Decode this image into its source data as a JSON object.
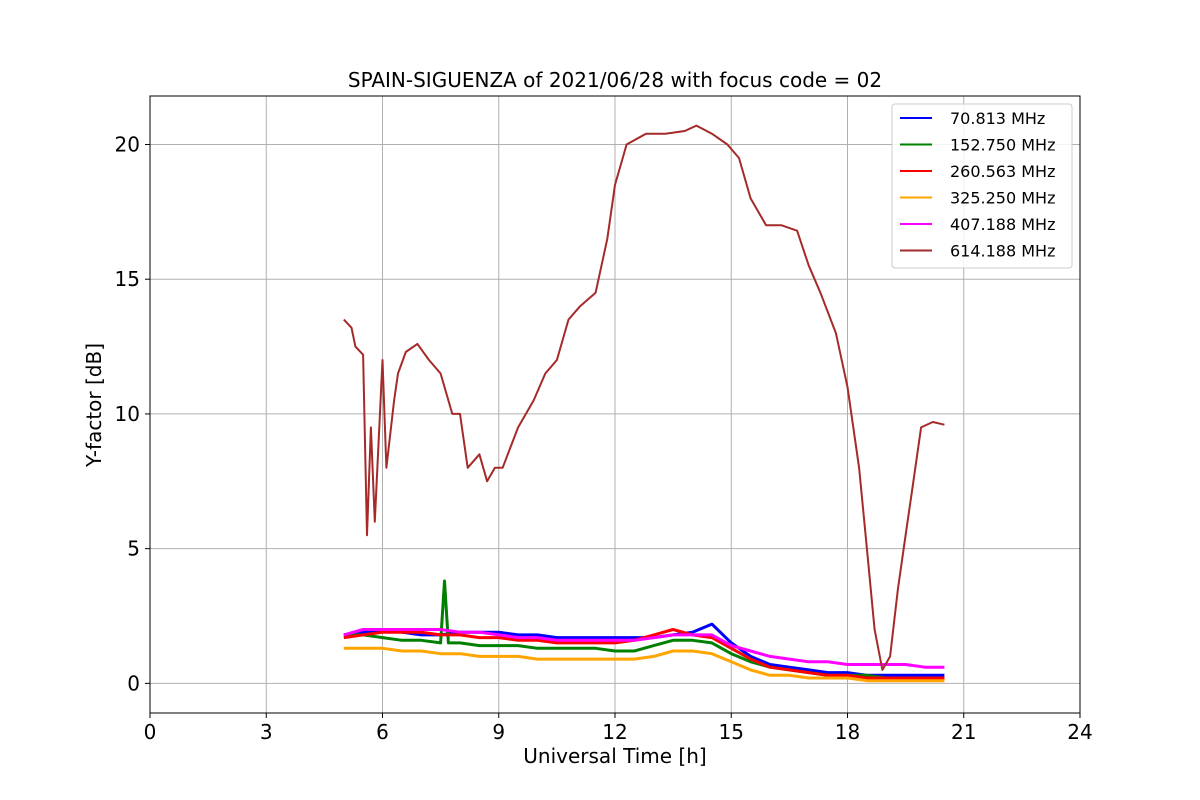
{
  "chart_data": {
    "type": "line",
    "title": "SPAIN-SIGUENZA of 2021/06/28 with focus code = 02",
    "xlabel": "Universal Time [h]",
    "ylabel": "Y-factor [dB]",
    "xlim": [
      0,
      24
    ],
    "ylim": [
      -1.1,
      21.8
    ],
    "xticks": [
      0,
      3,
      6,
      9,
      12,
      15,
      18,
      21,
      24
    ],
    "yticks": [
      0,
      5,
      10,
      15,
      20
    ],
    "grid": true,
    "legend_position": "top-right",
    "series": [
      {
        "name": " 70.813 MHz",
        "color": "#0000ff",
        "x": [
          5.0,
          5.5,
          6.0,
          6.5,
          7.0,
          7.5,
          8.0,
          8.5,
          9.0,
          9.5,
          10.0,
          10.5,
          11.0,
          11.5,
          12.0,
          12.5,
          13.0,
          13.5,
          14.0,
          14.5,
          15.0,
          15.5,
          16.0,
          16.5,
          17.0,
          17.5,
          18.0,
          18.5,
          19.0,
          19.5,
          20.0,
          20.5
        ],
        "y": [
          1.8,
          1.9,
          2.0,
          1.9,
          1.8,
          1.8,
          1.9,
          1.9,
          1.9,
          1.8,
          1.8,
          1.7,
          1.7,
          1.7,
          1.7,
          1.7,
          1.7,
          1.8,
          1.9,
          2.2,
          1.5,
          1.0,
          0.7,
          0.6,
          0.5,
          0.4,
          0.4,
          0.3,
          0.3,
          0.3,
          0.3,
          0.3
        ]
      },
      {
        "name": "152.750 MHz",
        "color": "#008000",
        "x": [
          5.0,
          5.5,
          6.0,
          6.5,
          7.0,
          7.5,
          7.6,
          7.7,
          8.0,
          8.5,
          9.0,
          9.5,
          10.0,
          10.5,
          11.0,
          11.5,
          12.0,
          12.5,
          13.0,
          13.5,
          14.0,
          14.5,
          15.0,
          15.5,
          16.0,
          16.5,
          17.0,
          17.5,
          18.0,
          18.5,
          19.0,
          19.5,
          20.0,
          20.5
        ],
        "y": [
          1.8,
          1.8,
          1.7,
          1.6,
          1.6,
          1.5,
          3.8,
          1.5,
          1.5,
          1.4,
          1.4,
          1.4,
          1.3,
          1.3,
          1.3,
          1.3,
          1.2,
          1.2,
          1.4,
          1.6,
          1.6,
          1.5,
          1.1,
          0.8,
          0.6,
          0.5,
          0.4,
          0.3,
          0.3,
          0.3,
          0.2,
          0.2,
          0.2,
          0.2
        ]
      },
      {
        "name": "260.563 MHz",
        "color": "#ff0000",
        "x": [
          5.0,
          5.5,
          6.0,
          6.5,
          7.0,
          7.5,
          8.0,
          8.5,
          9.0,
          9.5,
          10.0,
          10.5,
          11.0,
          11.5,
          12.0,
          12.5,
          13.0,
          13.5,
          14.0,
          14.5,
          15.0,
          15.5,
          16.0,
          16.5,
          17.0,
          17.5,
          18.0,
          18.5,
          19.0,
          19.5,
          20.0,
          20.5
        ],
        "y": [
          1.7,
          1.8,
          1.9,
          1.9,
          1.9,
          1.8,
          1.8,
          1.7,
          1.7,
          1.6,
          1.6,
          1.5,
          1.5,
          1.5,
          1.5,
          1.6,
          1.8,
          2.0,
          1.8,
          1.7,
          1.3,
          0.9,
          0.6,
          0.5,
          0.4,
          0.3,
          0.3,
          0.2,
          0.2,
          0.2,
          0.2,
          0.2
        ]
      },
      {
        "name": "325.250 MHz",
        "color": "#ffa500",
        "x": [
          5.0,
          5.5,
          6.0,
          6.5,
          7.0,
          7.5,
          8.0,
          8.5,
          9.0,
          9.5,
          10.0,
          10.5,
          11.0,
          11.5,
          12.0,
          12.5,
          13.0,
          13.5,
          14.0,
          14.5,
          15.0,
          15.5,
          16.0,
          16.5,
          17.0,
          17.5,
          18.0,
          18.5,
          19.0,
          19.5,
          20.0,
          20.5
        ],
        "y": [
          1.3,
          1.3,
          1.3,
          1.2,
          1.2,
          1.1,
          1.1,
          1.0,
          1.0,
          1.0,
          0.9,
          0.9,
          0.9,
          0.9,
          0.9,
          0.9,
          1.0,
          1.2,
          1.2,
          1.1,
          0.8,
          0.5,
          0.3,
          0.3,
          0.2,
          0.2,
          0.2,
          0.1,
          0.1,
          0.1,
          0.1,
          0.1
        ]
      },
      {
        "name": "407.188 MHz",
        "color": "#ff00ff",
        "x": [
          5.0,
          5.5,
          6.0,
          6.5,
          7.0,
          7.5,
          8.0,
          8.5,
          9.0,
          9.5,
          10.0,
          10.5,
          11.0,
          11.5,
          12.0,
          12.5,
          13.0,
          13.5,
          14.0,
          14.5,
          15.0,
          15.5,
          16.0,
          16.5,
          17.0,
          17.5,
          18.0,
          18.5,
          19.0,
          19.5,
          20.0,
          20.5
        ],
        "y": [
          1.8,
          2.0,
          2.0,
          2.0,
          2.0,
          2.0,
          1.9,
          1.9,
          1.8,
          1.7,
          1.7,
          1.6,
          1.6,
          1.6,
          1.6,
          1.6,
          1.7,
          1.8,
          1.8,
          1.8,
          1.4,
          1.2,
          1.0,
          0.9,
          0.8,
          0.8,
          0.7,
          0.7,
          0.7,
          0.7,
          0.6,
          0.6
        ]
      },
      {
        "name": "614.188 MHz",
        "color": "#a52a2a",
        "x": [
          5.0,
          5.2,
          5.3,
          5.5,
          5.6,
          5.7,
          5.8,
          6.0,
          6.1,
          6.3,
          6.4,
          6.6,
          6.9,
          7.2,
          7.5,
          7.8,
          8.0,
          8.2,
          8.5,
          8.7,
          8.9,
          9.1,
          9.5,
          9.9,
          10.2,
          10.5,
          10.8,
          11.1,
          11.5,
          11.8,
          12.0,
          12.3,
          12.8,
          13.3,
          13.8,
          14.1,
          14.5,
          14.9,
          15.2,
          15.5,
          15.9,
          16.3,
          16.7,
          17.0,
          17.3,
          17.7,
          18.0,
          18.3,
          18.5,
          18.7,
          18.9,
          19.1,
          19.3,
          19.5,
          19.7,
          19.9,
          20.2,
          20.5
        ],
        "y": [
          13.5,
          13.2,
          12.5,
          12.2,
          5.5,
          9.5,
          6.0,
          12.0,
          8.0,
          10.5,
          11.5,
          12.3,
          12.6,
          12.0,
          11.5,
          10.0,
          10.0,
          8.0,
          8.5,
          7.5,
          8.0,
          8.0,
          9.5,
          10.5,
          11.5,
          12.0,
          13.5,
          14.0,
          14.5,
          16.5,
          18.5,
          20.0,
          20.4,
          20.4,
          20.5,
          20.7,
          20.4,
          20.0,
          19.5,
          18.0,
          17.0,
          17.0,
          16.8,
          15.5,
          14.5,
          13.0,
          11.0,
          8.0,
          5.0,
          2.0,
          0.5,
          1.0,
          3.5,
          5.5,
          7.5,
          9.5,
          9.7,
          9.6
        ]
      }
    ]
  }
}
